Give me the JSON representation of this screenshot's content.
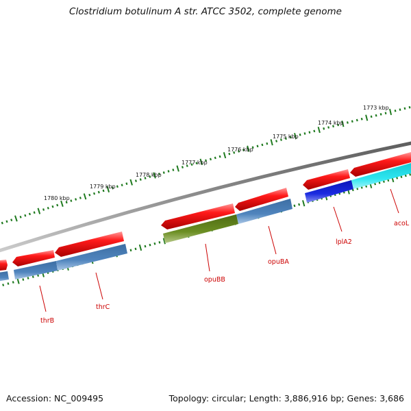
{
  "title": "Clostridium botulinum A str. ATCC 3502, complete genome",
  "accession_label": "Accession: NC_009495",
  "summary_label": "Topology: circular; Length: 3,886,916 bp; Genes: 3,686",
  "colors": {
    "backbone": "#8a8a8a",
    "ticks": "#1f7a1f",
    "forward_gene": "#e8141c",
    "label": "#cc0000",
    "steelblue_gene": "#4a7fb5",
    "olive_gene": "#6b8e23",
    "blue_gene": "#1a2be0",
    "cyan_gene": "#29e3ee"
  },
  "kbp_labels": [
    "1773 kbp",
    "1774 kbp",
    "1775 kbp",
    "1776 kbp",
    "1777 kbp",
    "1778 kbp",
    "1779 kbp",
    "1780 kbp"
  ],
  "gene_labels": [
    "acoL",
    "lplA2",
    "opuBA",
    "opuBB",
    "thrC",
    "thrB"
  ]
}
